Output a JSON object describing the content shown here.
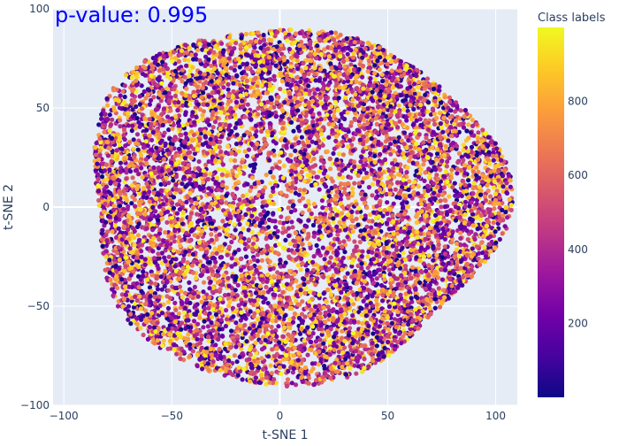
{
  "chart_data": {
    "type": "scatter",
    "title": "",
    "annotation": "p-value: 0.995",
    "xlabel": "t-SNE 1",
    "ylabel": "t-SNE 2",
    "xlim": [
      -105,
      110
    ],
    "ylim": [
      -100,
      100
    ],
    "x_ticks": [
      -100,
      -50,
      0,
      50,
      100
    ],
    "x_tick_labels": [
      "−100",
      "−50",
      "0",
      "50",
      "100"
    ],
    "y_ticks": [
      -100,
      -50,
      0,
      50,
      100
    ],
    "y_tick_labels": [
      "−100",
      "−50",
      "0",
      "50",
      "100"
    ],
    "grid": true,
    "legend_placement": "right",
    "colorbar": {
      "title": "Class labels",
      "range": [
        0,
        1000
      ],
      "ticks": [
        200,
        400,
        600,
        800
      ],
      "tick_labels": [
        "200",
        "400",
        "600",
        "800"
      ],
      "colorscale": [
        "#0d0887",
        "#46039f",
        "#7201a8",
        "#9c179e",
        "#bd3786",
        "#d8576b",
        "#ed7953",
        "#fb9f3a",
        "#fdca26",
        "#f0f921"
      ]
    },
    "point_cloud": {
      "shape": "dense roughly circular cloud",
      "center": [
        5,
        2
      ],
      "x_extent": [
        -95,
        97
      ],
      "y_extent": [
        -88,
        92
      ],
      "approx_points": 30000,
      "class_label_range": [
        1,
        1000
      ]
    }
  },
  "colors": {
    "plot_background": "#e5ecf6",
    "grid": "#ffffff",
    "annotation": "#0000ff",
    "text": "#2a3f5f"
  }
}
